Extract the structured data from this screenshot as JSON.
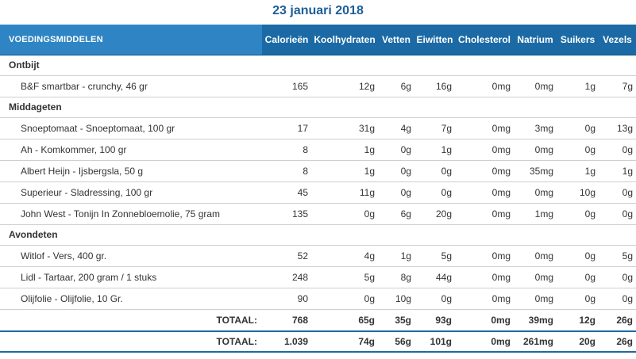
{
  "date": "23 januari 2018",
  "columns": {
    "food": "VOEDINGSMIDDELEN",
    "calories": "Calorieën",
    "carbs": "Koolhydraten",
    "fat": "Vetten",
    "protein": "Eiwitten",
    "cholesterol": "Cholesterol",
    "sodium": "Natrium",
    "sugar": "Suikers",
    "fiber": "Vezels"
  },
  "meals": [
    {
      "name": "Ontbijt",
      "items": [
        {
          "food": "B&F smartbar - crunchy, 46 gr",
          "cal": "165",
          "carb": "12g",
          "fat": "6g",
          "prot": "16g",
          "chol": "0mg",
          "na": "0mg",
          "sug": "1g",
          "fib": "7g"
        }
      ]
    },
    {
      "name": "Middageten",
      "items": [
        {
          "food": "Snoeptomaat - Snoeptomaat, 100 gr",
          "cal": "17",
          "carb": "31g",
          "fat": "4g",
          "prot": "7g",
          "chol": "0mg",
          "na": "3mg",
          "sug": "0g",
          "fib": "13g"
        },
        {
          "food": "Ah - Komkommer, 100 gr",
          "cal": "8",
          "carb": "1g",
          "fat": "0g",
          "prot": "1g",
          "chol": "0mg",
          "na": "0mg",
          "sug": "0g",
          "fib": "0g"
        },
        {
          "food": "Albert Heijn - Ijsbergsla, 50 g",
          "cal": "8",
          "carb": "1g",
          "fat": "0g",
          "prot": "0g",
          "chol": "0mg",
          "na": "35mg",
          "sug": "1g",
          "fib": "1g"
        },
        {
          "food": "Superieur - Sladressing, 100 gr",
          "cal": "45",
          "carb": "11g",
          "fat": "0g",
          "prot": "0g",
          "chol": "0mg",
          "na": "0mg",
          "sug": "10g",
          "fib": "0g"
        },
        {
          "food": "John West - Tonijn In Zonnebloemolie, 75 gram",
          "cal": "135",
          "carb": "0g",
          "fat": "6g",
          "prot": "20g",
          "chol": "0mg",
          "na": "1mg",
          "sug": "0g",
          "fib": "0g"
        }
      ]
    },
    {
      "name": "Avondeten",
      "items": [
        {
          "food": "Witlof - Vers, 400 gr.",
          "cal": "52",
          "carb": "4g",
          "fat": "1g",
          "prot": "5g",
          "chol": "0mg",
          "na": "0mg",
          "sug": "0g",
          "fib": "5g"
        },
        {
          "food": "Lidl - Tartaar, 200 gram / 1 stuks",
          "cal": "248",
          "carb": "5g",
          "fat": "8g",
          "prot": "44g",
          "chol": "0mg",
          "na": "0mg",
          "sug": "0g",
          "fib": "0g"
        },
        {
          "food": "Olijfolie - Olijfolie, 10 Gr.",
          "cal": "90",
          "carb": "0g",
          "fat": "10g",
          "prot": "0g",
          "chol": "0mg",
          "na": "0mg",
          "sug": "0g",
          "fib": "0g"
        }
      ],
      "total": {
        "label": "TOTAAL:",
        "cal": "768",
        "carb": "65g",
        "fat": "35g",
        "prot": "93g",
        "chol": "0mg",
        "na": "39mg",
        "sug": "12g",
        "fib": "26g"
      }
    }
  ],
  "day_total": {
    "label": "TOTAAL:",
    "cal": "1.039",
    "carb": "74g",
    "fat": "56g",
    "prot": "101g",
    "chol": "0mg",
    "na": "261mg",
    "sug": "20g",
    "fib": "26g"
  },
  "colors": {
    "title": "#1d5e99",
    "header_bg": "#1b6aa5",
    "header_food_bg": "#2f85c4",
    "header_text": "#ffffff",
    "rule": "#1b6aa5"
  }
}
